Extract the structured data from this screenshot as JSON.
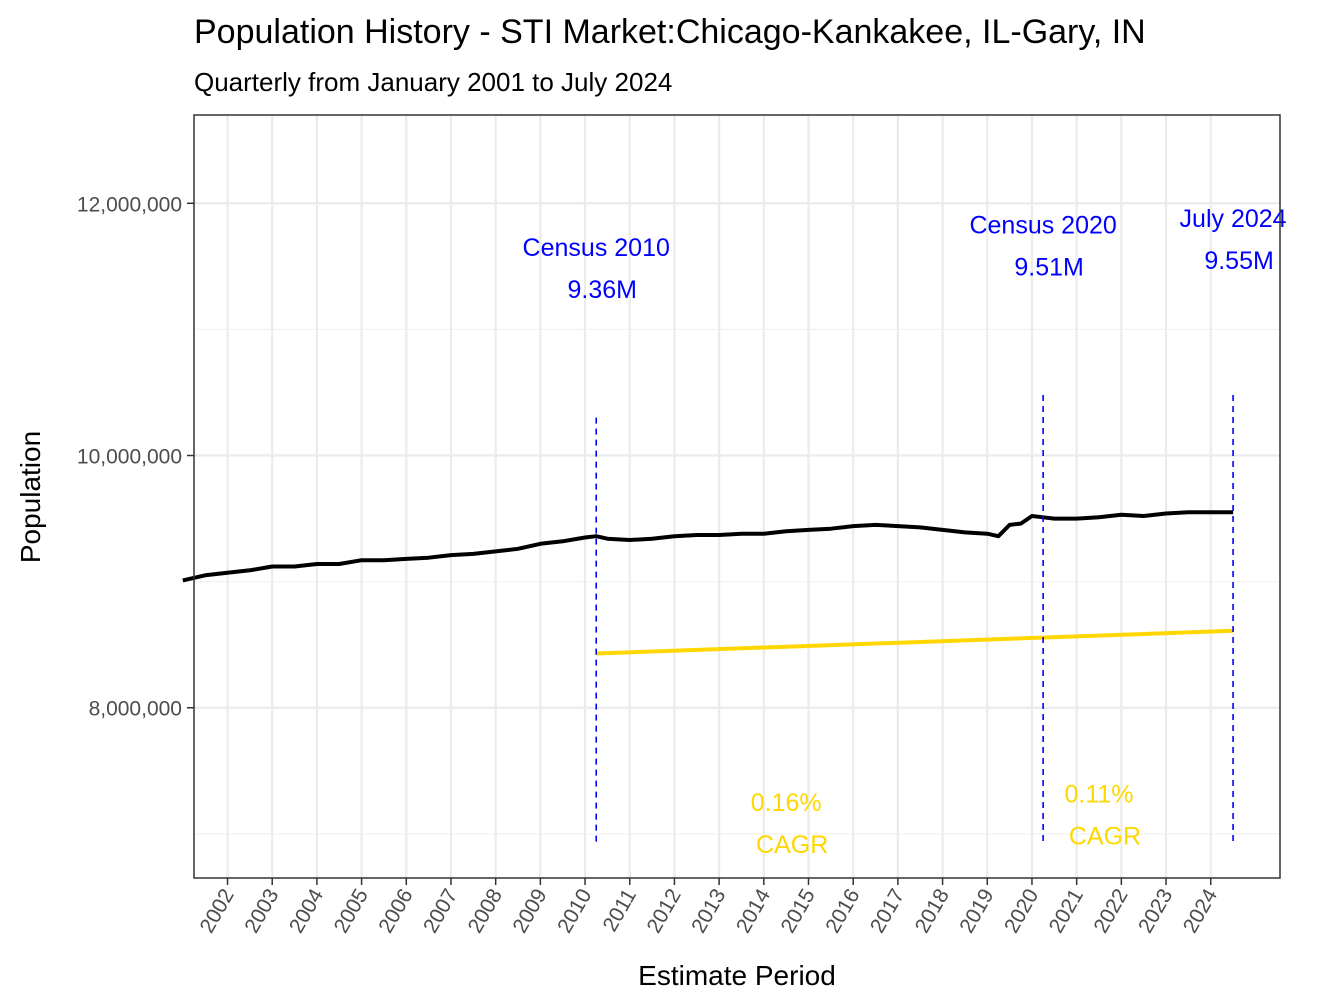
{
  "chart_data": {
    "type": "line",
    "title": "Population History - STI Market:Chicago-Kankakee, IL-Gary, IN",
    "subtitle": "Quarterly from January 2001 to July 2024",
    "xlabel": "Estimate Period",
    "ylabel": "Population",
    "xlim": [
      2001.25,
      2025.55
    ],
    "ylim": [
      6650000,
      12700000
    ],
    "y_ticks": [
      8000000,
      10000000,
      12000000
    ],
    "y_tick_labels": [
      "8,000,000",
      "10,000,000",
      "12,000,000"
    ],
    "x_ticks": [
      2002,
      2003,
      2004,
      2005,
      2006,
      2007,
      2008,
      2009,
      2010,
      2011,
      2012,
      2013,
      2014,
      2015,
      2016,
      2017,
      2018,
      2019,
      2020,
      2021,
      2022,
      2023,
      2024
    ],
    "x_tick_labels": [
      "2002",
      "2003",
      "2004",
      "2005",
      "2006",
      "2007",
      "2008",
      "2009",
      "2010",
      "2011",
      "2012",
      "2013",
      "2014",
      "2015",
      "2016",
      "2017",
      "2018",
      "2019",
      "2020",
      "2021",
      "2022",
      "2023",
      "2024"
    ],
    "grid": true,
    "series": [
      {
        "name": "Population",
        "color": "#000000",
        "x": [
          2001.0,
          2001.5,
          2002.0,
          2002.5,
          2003.0,
          2003.5,
          2004.0,
          2004.5,
          2005.0,
          2005.5,
          2006.0,
          2006.5,
          2007.0,
          2007.5,
          2008.0,
          2008.5,
          2009.0,
          2009.5,
          2010.0,
          2010.25,
          2010.5,
          2011.0,
          2011.5,
          2012.0,
          2012.5,
          2013.0,
          2013.5,
          2014.0,
          2014.5,
          2015.0,
          2015.5,
          2016.0,
          2016.5,
          2017.0,
          2017.5,
          2018.0,
          2018.5,
          2019.0,
          2019.25,
          2019.5,
          2019.75,
          2020.0,
          2020.25,
          2020.5,
          2021.0,
          2021.5,
          2022.0,
          2022.5,
          2023.0,
          2023.5,
          2024.0,
          2024.5
        ],
        "values": [
          9010000,
          9050000,
          9070000,
          9090000,
          9120000,
          9120000,
          9140000,
          9140000,
          9170000,
          9170000,
          9180000,
          9190000,
          9210000,
          9220000,
          9240000,
          9260000,
          9300000,
          9320000,
          9350000,
          9360000,
          9340000,
          9330000,
          9340000,
          9360000,
          9370000,
          9370000,
          9380000,
          9380000,
          9400000,
          9410000,
          9420000,
          9440000,
          9450000,
          9440000,
          9430000,
          9410000,
          9390000,
          9380000,
          9360000,
          9450000,
          9460000,
          9520000,
          9510000,
          9500000,
          9500000,
          9510000,
          9530000,
          9520000,
          9540000,
          9550000,
          9550000,
          9550000
        ]
      },
      {
        "name": "CAGR trend",
        "color": "#FFD700",
        "x": [
          2010.25,
          2024.5
        ],
        "values": [
          8430000,
          8610000
        ]
      }
    ],
    "vlines": [
      {
        "x": 2010.25,
        "y_top": 10300000,
        "color": "#0000FF"
      },
      {
        "x": 2020.25,
        "y_top": 10480000,
        "color": "#0000FF"
      },
      {
        "x": 2024.5,
        "y_top": 10480000,
        "color": "#0000FF"
      }
    ],
    "annotations": [
      {
        "line1": "Census 2010",
        "line2": "9.36M",
        "x": 2010.25,
        "y": 11580000,
        "color": "#0000FF"
      },
      {
        "line1": "Census 2020",
        "line2": "9.51M",
        "x": 2020.25,
        "y": 11760000,
        "color": "#0000FF"
      },
      {
        "line1": "July 2024",
        "line2": "9.55M",
        "x": 2024.5,
        "y": 11810000,
        "color": "#0000FF"
      },
      {
        "line1": "0.16%",
        "line2": "CAGR",
        "x": 2014.5,
        "y": 7180000,
        "color": "#FFD700"
      },
      {
        "line1": "0.11%",
        "line2": "CAGR",
        "x": 2021.5,
        "y": 7250000,
        "color": "#FFD700"
      }
    ]
  }
}
